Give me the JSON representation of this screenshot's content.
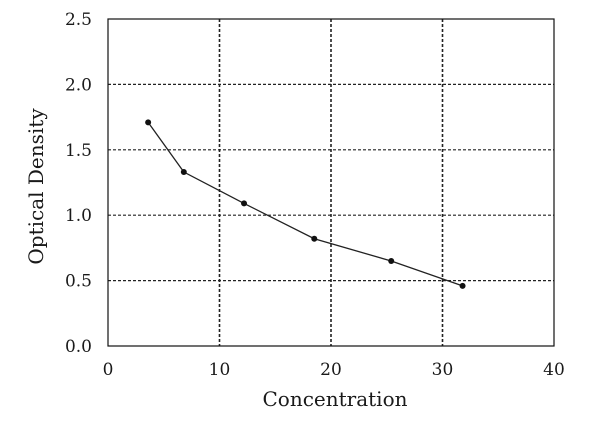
{
  "chart_data": {
    "type": "line",
    "title": "",
    "xlabel": "Concentration",
    "ylabel": "Optical Density",
    "xlim": [
      0,
      40
    ],
    "ylim": [
      0,
      2.5
    ],
    "x_ticks": [
      "0",
      "10",
      "20",
      "30",
      "40"
    ],
    "y_ticks": [
      "0.0",
      "0.5",
      "1.0",
      "1.5",
      "2.0",
      "2.5"
    ],
    "grid": true,
    "series": [
      {
        "x": [
          3.6,
          6.8,
          12.2,
          18.5,
          25.4,
          31.8
        ],
        "y": [
          1.71,
          1.33,
          1.09,
          0.82,
          0.65,
          0.46
        ]
      }
    ]
  }
}
